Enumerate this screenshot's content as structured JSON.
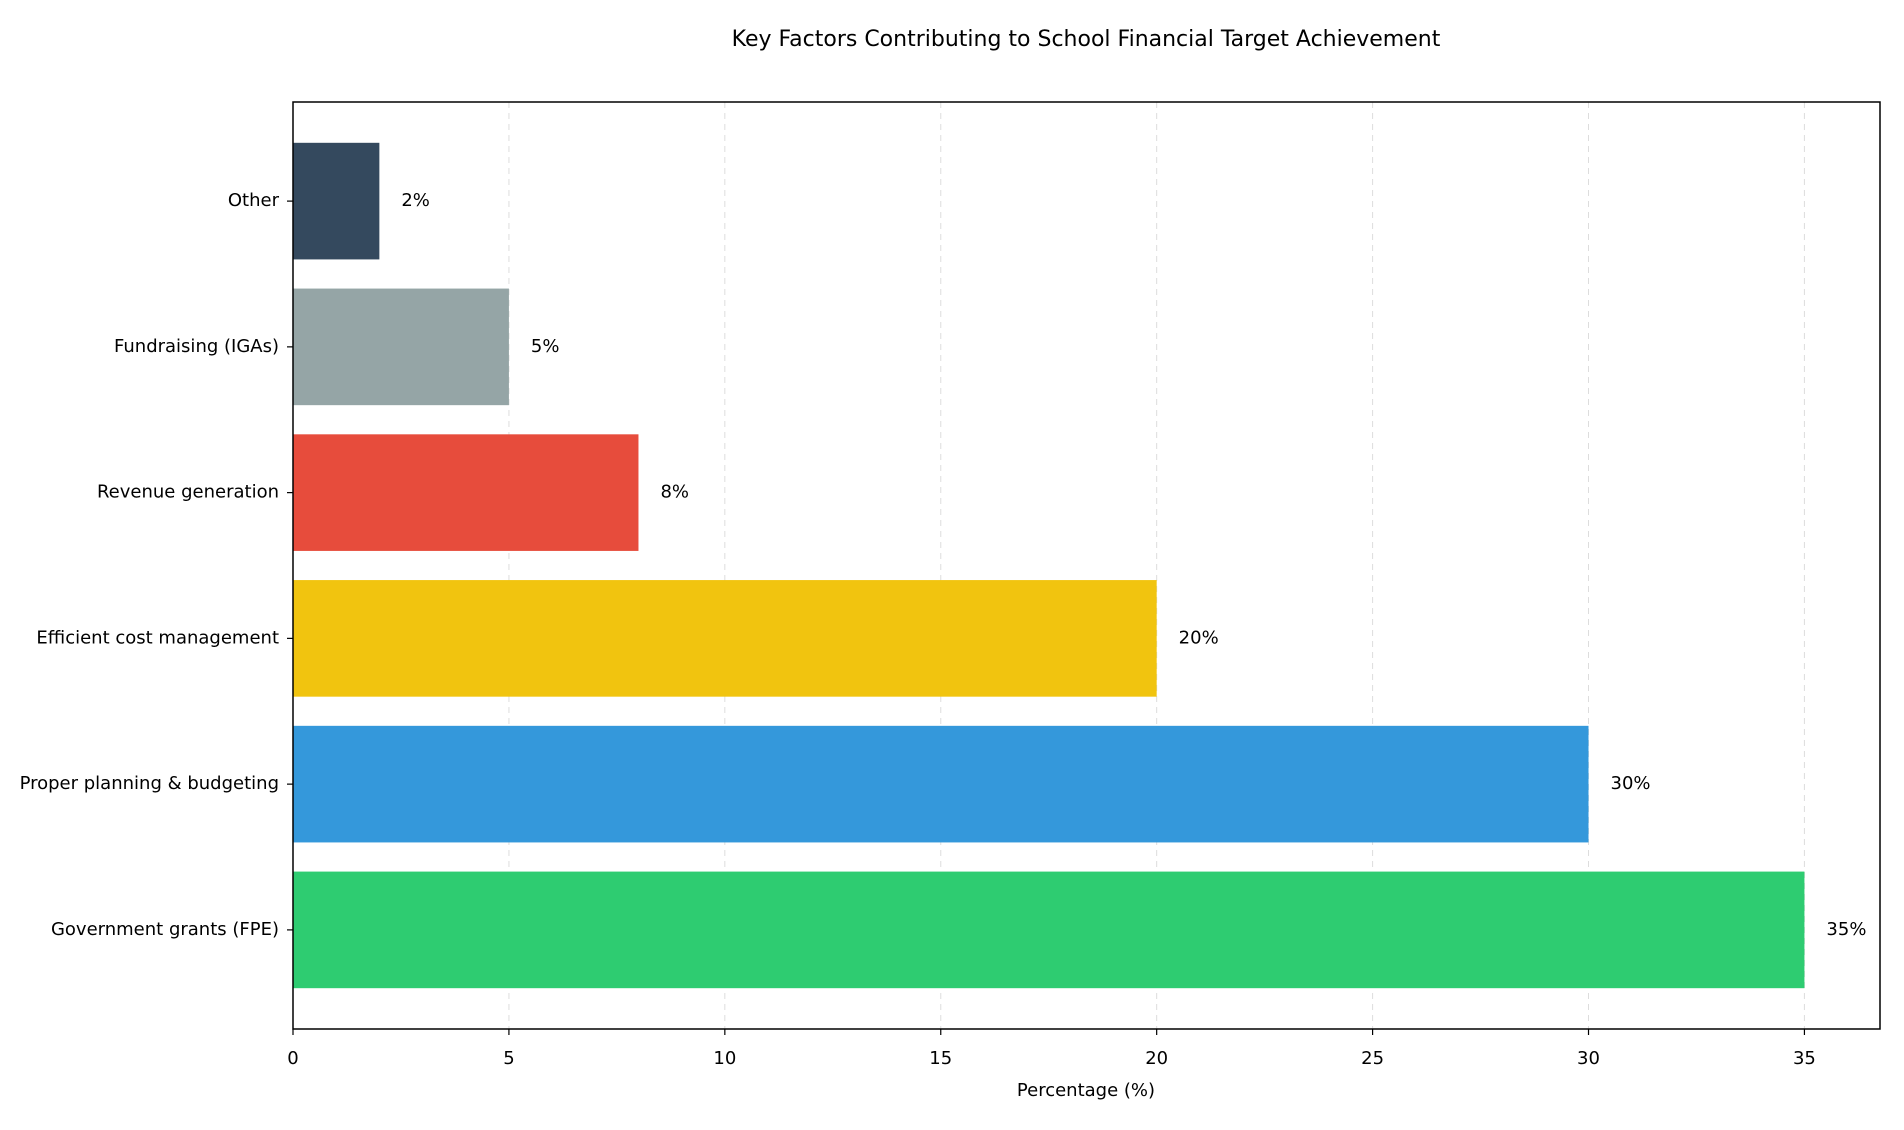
{
  "chart_data": {
    "type": "barh",
    "title": "Key Factors Contributing to School Financial Target Achievement",
    "xlabel": "Percentage (%)",
    "categories": [
      "Government grants (FPE)",
      "Proper planning & budgeting",
      "Efficient cost management",
      "Revenue generation",
      "Fundraising (IGAs)",
      "Other"
    ],
    "values": [
      35,
      30,
      20,
      8,
      5,
      2
    ],
    "value_labels": [
      "35%",
      "30%",
      "20%",
      "8%",
      "5%",
      "2%"
    ],
    "colors": [
      "#2ecc71",
      "#3498db",
      "#f1c40f",
      "#e74c3c",
      "#95a5a6",
      "#34495e"
    ],
    "xlim": [
      0,
      36.75
    ],
    "xticks": [
      0,
      5,
      10,
      15,
      20,
      25,
      30,
      35
    ],
    "grid": true
  }
}
